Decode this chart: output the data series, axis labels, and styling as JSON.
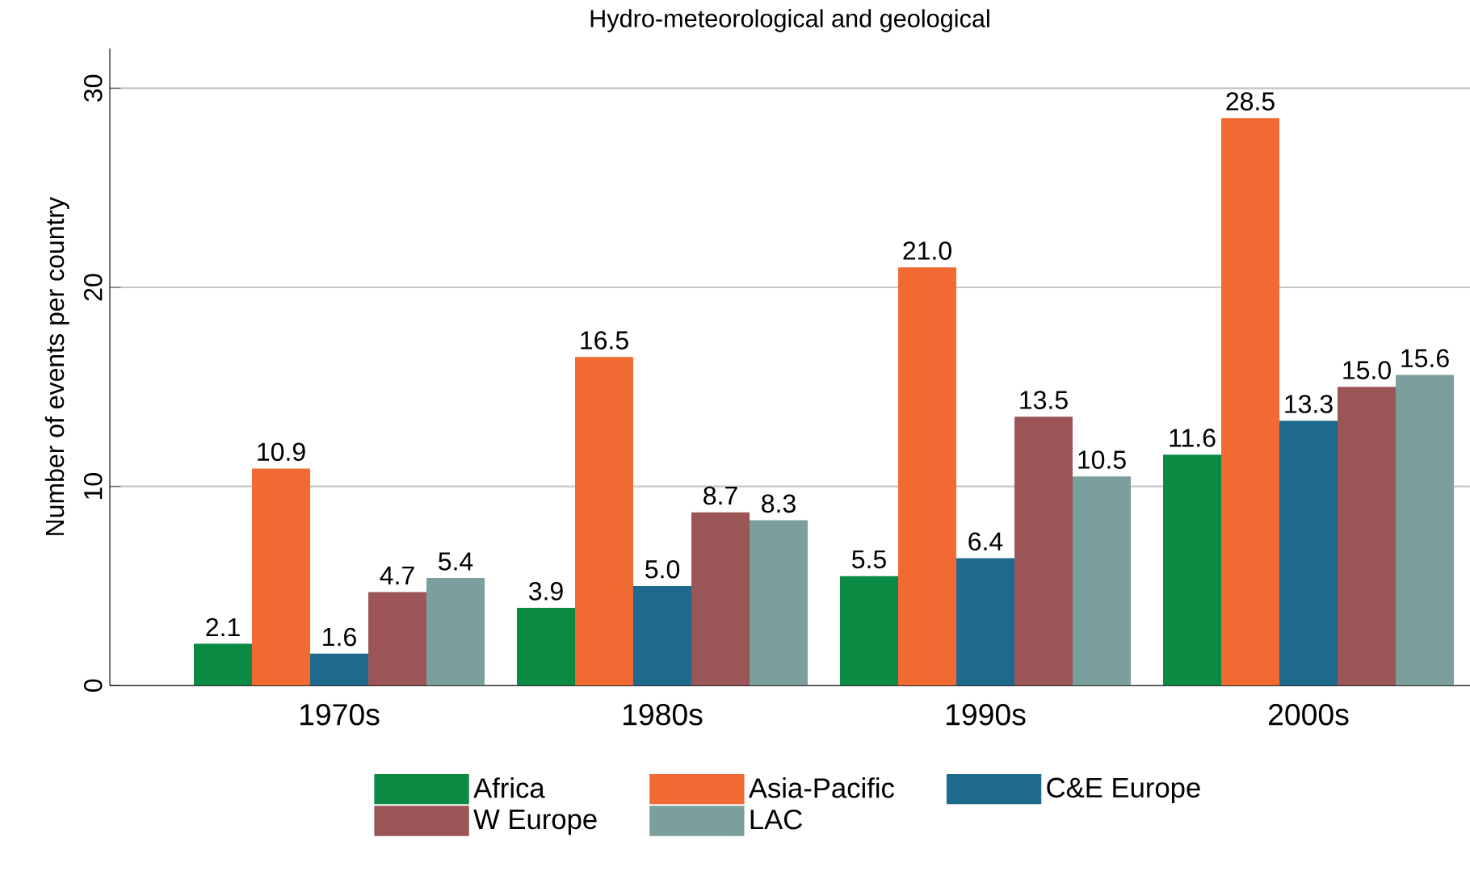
{
  "chart_data": {
    "type": "bar",
    "title": "Hydro-meteorological and geological",
    "ylabel": "Number of events per country",
    "categories": [
      "1970s",
      "1980s",
      "1990s",
      "2000s"
    ],
    "series": [
      {
        "name": "Africa",
        "color": "#0a8a43",
        "values": [
          2.1,
          3.9,
          5.5,
          11.6
        ],
        "value_labels": [
          "2.1",
          "3.9",
          "5.5",
          "11.6"
        ]
      },
      {
        "name": "Asia-Pacific",
        "color": "#f06a31",
        "values": [
          10.9,
          16.5,
          21.0,
          28.5
        ],
        "value_labels": [
          "10.9",
          "16.5",
          "21.0",
          "28.5"
        ]
      },
      {
        "name": "C&E Europe",
        "color": "#1d6a8c",
        "values": [
          1.6,
          5.0,
          6.4,
          13.3
        ],
        "value_labels": [
          "1.6",
          "5.0",
          "6.4",
          "13.3"
        ]
      },
      {
        "name": "W Europe",
        "color": "#9c5557",
        "values": [
          4.7,
          8.7,
          13.5,
          15.0
        ],
        "value_labels": [
          "4.7",
          "8.7",
          "13.5",
          "15.0"
        ]
      },
      {
        "name": "LAC",
        "color": "#7a9f9c",
        "values": [
          5.4,
          8.3,
          10.5,
          15.6
        ],
        "value_labels": [
          "5.4",
          "8.3",
          "10.5",
          "15.6"
        ]
      }
    ],
    "ylim": [
      0,
      32
    ],
    "yticks": [
      0,
      10,
      20,
      30
    ],
    "grid": "y",
    "legend": "bottom",
    "data_labels": true
  }
}
